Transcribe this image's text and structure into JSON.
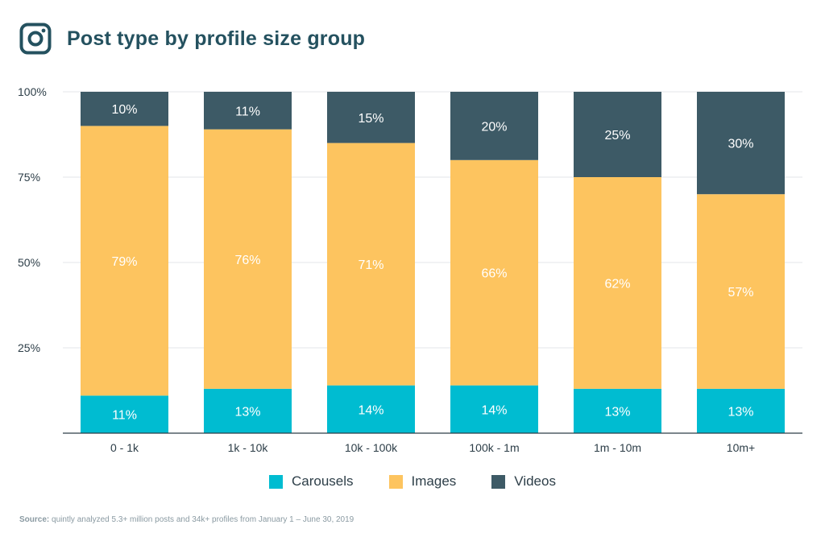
{
  "header": {
    "title": "Post type by profile size group",
    "logo_icon": "instagram-icon"
  },
  "chart_data": {
    "type": "bar",
    "stacked": true,
    "categories": [
      "0 - 1k",
      "1k - 10k",
      "10k - 100k",
      "100k - 1m",
      "1m - 10m",
      "10m+"
    ],
    "series": [
      {
        "name": "Carousels",
        "color": "#00bcd1",
        "values": [
          11,
          13,
          14,
          14,
          13,
          13
        ],
        "labels": [
          "11%",
          "13%",
          "14%",
          "14%",
          "13%",
          "13%"
        ]
      },
      {
        "name": "Images",
        "color": "#fdc45f",
        "values": [
          79,
          76,
          71,
          66,
          62,
          57
        ],
        "labels": [
          "79%",
          "76%",
          "71%",
          "66%",
          "62%",
          "57%"
        ]
      },
      {
        "name": "Videos",
        "color": "#3d5a66",
        "values": [
          10,
          11,
          15,
          20,
          25,
          30
        ],
        "labels": [
          "10%",
          "11%",
          "15%",
          "20%",
          "25%",
          "30%"
        ]
      }
    ],
    "ylim": [
      0,
      100
    ],
    "yticks": [
      25,
      50,
      75,
      100
    ],
    "ytick_labels": [
      "25%",
      "50%",
      "75%",
      "100%"
    ],
    "grid": true,
    "legend_position": "bottom-center"
  },
  "source": {
    "label": "Source:",
    "text": " quintly analyzed 5.3+ million posts and 34k+ profiles from January 1 – June 30, 2019"
  }
}
